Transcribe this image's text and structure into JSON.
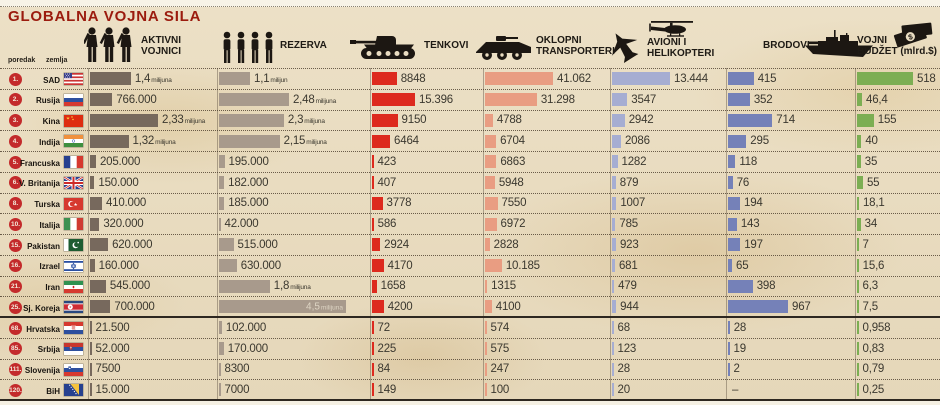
{
  "header": {
    "rank_label": "poredak",
    "country_label": "zemlja",
    "col_active": "AKTIVNI\nVOJNICI",
    "col_reserve": "REZERVA",
    "col_tanks": "TENKOVI",
    "col_transp": "OKLOPNI\nTRANSPORTERI",
    "col_air": "AVIONI I\nHELIKOPTERI",
    "col_ships": "BRODOVI",
    "col_budget": "VOJNI\nBUDŽET (mlrd.$)"
  },
  "colors": {
    "title": "#9b1b0e",
    "badge": "#c32a2b",
    "active_bar": "#77695d",
    "reserve_bar": "#a89a8c",
    "tanks_bar": "#dd2a1e",
    "transp_bar": "#e99d82",
    "air_bar": "#a6add2",
    "ships_bar": "#7581b8",
    "budget_bar": "#7cae53",
    "icon": "#1c1712",
    "paper": "#e9dcc1"
  },
  "chart_data": {
    "type": "table",
    "title": "GLOBALNA VOJNA SILA",
    "columns": [
      "poredak",
      "zemlja",
      "AKTIVNI VOJNICI",
      "REZERVA",
      "TENKOVI",
      "OKLOPNI TRANSPORTERI",
      "AVIONI I HELIKOPTERI",
      "BRODOVI",
      "VOJNI BUDŽET (mlrd.$)"
    ],
    "rows": [
      {
        "rank": "1.",
        "country": "SAD",
        "flag": "us",
        "active": {
          "t": "1,4",
          "u": "milijuna",
          "v": 1400
        },
        "reserve": {
          "t": "1,1",
          "u": "milijun",
          "v": 1100
        },
        "tanks": {
          "t": "8848",
          "v": 8848
        },
        "transp": {
          "t": "41.062",
          "v": 41062
        },
        "air": {
          "t": "13.444",
          "v": 13444
        },
        "ships": {
          "t": "415",
          "v": 415
        },
        "budget": {
          "t": "518",
          "v": 518
        }
      },
      {
        "rank": "2.",
        "country": "Rusija",
        "flag": "ru",
        "active": {
          "t": "766.000",
          "v": 766
        },
        "reserve": {
          "t": "2,48",
          "u": "milijuna",
          "v": 2480
        },
        "tanks": {
          "t": "15.396",
          "v": 15396
        },
        "transp": {
          "t": "31.298",
          "v": 31298
        },
        "air": {
          "t": "3547",
          "v": 3547
        },
        "ships": {
          "t": "352",
          "v": 352
        },
        "budget": {
          "t": "46,4",
          "v": 46.4
        }
      },
      {
        "rank": "3.",
        "country": "Kina",
        "flag": "cn",
        "active": {
          "t": "2,33",
          "u": "milijuna",
          "v": 2330
        },
        "reserve": {
          "t": "2,3",
          "u": "milijuna",
          "v": 2300
        },
        "tanks": {
          "t": "9150",
          "v": 9150
        },
        "transp": {
          "t": "4788",
          "v": 4788
        },
        "air": {
          "t": "2942",
          "v": 2942
        },
        "ships": {
          "t": "714",
          "v": 714
        },
        "budget": {
          "t": "155",
          "v": 155
        }
      },
      {
        "rank": "4.",
        "country": "Indija",
        "flag": "in",
        "active": {
          "t": "1,32",
          "u": "milijuna",
          "v": 1320
        },
        "reserve": {
          "t": "2,15",
          "u": "milijuna",
          "v": 2150
        },
        "tanks": {
          "t": "6464",
          "v": 6464
        },
        "transp": {
          "t": "6704",
          "v": 6704
        },
        "air": {
          "t": "2086",
          "v": 2086
        },
        "ships": {
          "t": "295",
          "v": 295
        },
        "budget": {
          "t": "40",
          "v": 40
        }
      },
      {
        "rank": "5.",
        "country": "Francuska",
        "flag": "fr",
        "active": {
          "t": "205.000",
          "v": 205
        },
        "reserve": {
          "t": "195.000",
          "v": 195
        },
        "tanks": {
          "t": "423",
          "v": 423
        },
        "transp": {
          "t": "6863",
          "v": 6863
        },
        "air": {
          "t": "1282",
          "v": 1282
        },
        "ships": {
          "t": "118",
          "v": 118
        },
        "budget": {
          "t": "35",
          "v": 35
        }
      },
      {
        "rank": "6.",
        "country": "V. Britanija",
        "flag": "gb",
        "active": {
          "t": "150.000",
          "v": 150
        },
        "reserve": {
          "t": "182.000",
          "v": 182
        },
        "tanks": {
          "t": "407",
          "v": 407
        },
        "transp": {
          "t": "5948",
          "v": 5948
        },
        "air": {
          "t": "879",
          "v": 879
        },
        "ships": {
          "t": "76",
          "v": 76
        },
        "budget": {
          "t": "55",
          "v": 55
        }
      },
      {
        "rank": "8.",
        "country": "Turska",
        "flag": "tr",
        "active": {
          "t": "410.000",
          "v": 410
        },
        "reserve": {
          "t": "185.000",
          "v": 185
        },
        "tanks": {
          "t": "3778",
          "v": 3778
        },
        "transp": {
          "t": "7550",
          "v": 7550
        },
        "air": {
          "t": "1007",
          "v": 1007
        },
        "ships": {
          "t": "194",
          "v": 194
        },
        "budget": {
          "t": "18,1",
          "v": 18.1
        }
      },
      {
        "rank": "10.",
        "country": "Italija",
        "flag": "it",
        "active": {
          "t": "320.000",
          "v": 320
        },
        "reserve": {
          "t": "42.000",
          "v": 42
        },
        "tanks": {
          "t": "586",
          "v": 586
        },
        "transp": {
          "t": "6972",
          "v": 6972
        },
        "air": {
          "t": "785",
          "v": 785
        },
        "ships": {
          "t": "143",
          "v": 143
        },
        "budget": {
          "t": "34",
          "v": 34
        }
      },
      {
        "rank": "15.",
        "country": "Pakistan",
        "flag": "pk",
        "active": {
          "t": "620.000",
          "v": 620
        },
        "reserve": {
          "t": "515.000",
          "v": 515
        },
        "tanks": {
          "t": "2924",
          "v": 2924
        },
        "transp": {
          "t": "2828",
          "v": 2828
        },
        "air": {
          "t": "923",
          "v": 923
        },
        "ships": {
          "t": "197",
          "v": 197
        },
        "budget": {
          "t": "7",
          "v": 7
        }
      },
      {
        "rank": "16.",
        "country": "Izrael",
        "flag": "il",
        "active": {
          "t": "160.000",
          "v": 160
        },
        "reserve": {
          "t": "630.000",
          "v": 630
        },
        "tanks": {
          "t": "4170",
          "v": 4170
        },
        "transp": {
          "t": "10.185",
          "v": 10185
        },
        "air": {
          "t": "681",
          "v": 681
        },
        "ships": {
          "t": "65",
          "v": 65
        },
        "budget": {
          "t": "15,6",
          "v": 15.6
        }
      },
      {
        "rank": "21.",
        "country": "Iran",
        "flag": "ir",
        "active": {
          "t": "545.000",
          "v": 545
        },
        "reserve": {
          "t": "1,8",
          "u": "milijuna",
          "v": 1800
        },
        "tanks": {
          "t": "1658",
          "v": 1658
        },
        "transp": {
          "t": "1315",
          "v": 1315
        },
        "air": {
          "t": "479",
          "v": 479
        },
        "ships": {
          "t": "398",
          "v": 398
        },
        "budget": {
          "t": "6,3",
          "v": 6.3
        }
      },
      {
        "rank": "25.",
        "country": "Sj. Koreja",
        "flag": "kp",
        "active": {
          "t": "700.000",
          "v": 700
        },
        "reserve": {
          "t": "4,5",
          "u": "milijuna",
          "v": 4500,
          "inside": true
        },
        "tanks": {
          "t": "4200",
          "v": 4200
        },
        "transp": {
          "t": "4100",
          "v": 4100
        },
        "air": {
          "t": "944",
          "v": 944
        },
        "ships": {
          "t": "967",
          "v": 967
        },
        "budget": {
          "t": "7,5",
          "v": 7.5
        }
      },
      {
        "rank": "68.",
        "country": "Hrvatska",
        "flag": "hr",
        "active": {
          "t": "21.500",
          "v": 21.5
        },
        "reserve": {
          "t": "102.000",
          "v": 102
        },
        "tanks": {
          "t": "72",
          "v": 72
        },
        "transp": {
          "t": "574",
          "v": 574
        },
        "air": {
          "t": "68",
          "v": 68
        },
        "ships": {
          "t": "28",
          "v": 28
        },
        "budget": {
          "t": "0,958",
          "v": 0.958
        }
      },
      {
        "rank": "85.",
        "country": "Srbija",
        "flag": "rs",
        "active": {
          "t": "52.000",
          "v": 52
        },
        "reserve": {
          "t": "170.000",
          "v": 170
        },
        "tanks": {
          "t": "225",
          "v": 225
        },
        "transp": {
          "t": "575",
          "v": 575
        },
        "air": {
          "t": "123",
          "v": 123
        },
        "ships": {
          "t": "19",
          "v": 19
        },
        "budget": {
          "t": "0,83",
          "v": 0.83
        }
      },
      {
        "rank": "111.",
        "country": "Slovenija",
        "flag": "si",
        "active": {
          "t": "7500",
          "v": 7.5
        },
        "reserve": {
          "t": "8300",
          "v": 8.3
        },
        "tanks": {
          "t": "84",
          "v": 84
        },
        "transp": {
          "t": "247",
          "v": 247
        },
        "air": {
          "t": "28",
          "v": 28
        },
        "ships": {
          "t": "2",
          "v": 2
        },
        "budget": {
          "t": "0,79",
          "v": 0.79
        }
      },
      {
        "rank": "120.",
        "country": "BiH",
        "flag": "ba",
        "active": {
          "t": "15.000",
          "v": 15
        },
        "reserve": {
          "t": "7000",
          "v": 7
        },
        "tanks": {
          "t": "149",
          "v": 149
        },
        "transp": {
          "t": "100",
          "v": 100
        },
        "air": {
          "t": "20",
          "v": 20
        },
        "ships": {
          "t": "–",
          "v": 0
        },
        "budget": {
          "t": "0,25",
          "v": 0.25
        }
      }
    ]
  }
}
